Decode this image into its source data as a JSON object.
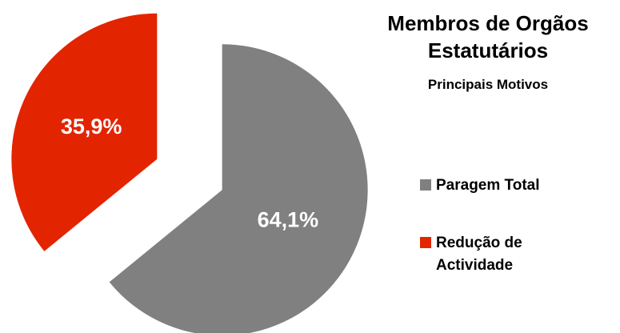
{
  "chart_data": {
    "type": "pie",
    "title": "Membros de Orgãos Estatutários",
    "subtitle": "Principais Motivos",
    "categories": [
      "Paragem Total",
      "Redução de Actividade"
    ],
    "values": [
      64.1,
      35.9
    ],
    "value_labels": [
      "64,1%",
      "35,9%"
    ],
    "colors": [
      "#808080",
      "#e32400"
    ],
    "legend": "right"
  }
}
